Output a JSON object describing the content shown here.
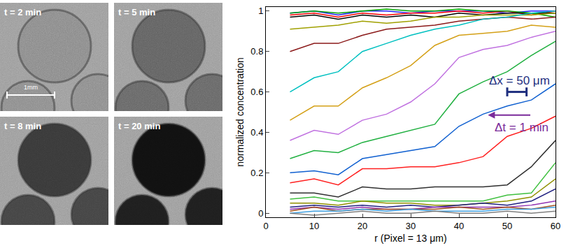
{
  "chart_data": {
    "type": "line",
    "xlabel": "r (Pixel = 13 μm)",
    "ylabel": "normalized concentration",
    "x": [
      5,
      10,
      15,
      20,
      25,
      30,
      35,
      40,
      45,
      50,
      55,
      60
    ],
    "xlim": [
      0,
      60
    ],
    "xticks": [
      0,
      10,
      20,
      30,
      40,
      50,
      60
    ],
    "ylim": [
      -0.02,
      1.02
    ],
    "yticks": [
      0,
      0.2,
      0.4,
      0.6,
      0.8,
      1
    ],
    "grid": false,
    "series": [
      {
        "color": "#1f1fff",
        "values": [
          0.99,
          1.0,
          0.98,
          1.0,
          1.0,
          0.99,
          1.0,
          1.0,
          1.0,
          0.99,
          1.0,
          1.0
        ]
      },
      {
        "color": "#ff0000",
        "values": [
          0.98,
          0.99,
          0.97,
          0.99,
          0.98,
          0.99,
          0.99,
          1.0,
          0.99,
          1.0,
          0.98,
          1.0
        ]
      },
      {
        "color": "#000000",
        "values": [
          0.97,
          0.98,
          0.96,
          0.98,
          0.97,
          0.98,
          0.97,
          0.99,
          0.98,
          0.99,
          0.99,
          0.99
        ]
      },
      {
        "color": "#00a000",
        "values": [
          0.99,
          1.0,
          0.99,
          1.0,
          1.01,
          1.0,
          1.0,
          1.01,
          1.0,
          1.0,
          0.99,
          0.97
        ]
      },
      {
        "color": "#a0a000",
        "values": [
          0.91,
          0.92,
          0.93,
          0.95,
          0.94,
          0.95,
          0.97,
          0.97,
          0.98,
          0.98,
          0.98,
          0.99
        ]
      },
      {
        "color": "#8b1a1a",
        "values": [
          0.8,
          0.84,
          0.84,
          0.88,
          0.91,
          0.92,
          0.93,
          0.95,
          0.96,
          0.97,
          0.96,
          0.97
        ]
      },
      {
        "color": "#00c0c0",
        "values": [
          0.6,
          0.67,
          0.7,
          0.8,
          0.84,
          0.88,
          0.91,
          0.93,
          0.96,
          0.97,
          0.99,
          1.0
        ]
      },
      {
        "color": "#d4a017",
        "values": [
          0.46,
          0.53,
          0.53,
          0.62,
          0.67,
          0.73,
          0.83,
          0.88,
          0.89,
          0.9,
          0.93,
          0.92
        ]
      },
      {
        "color": "#c071e0",
        "values": [
          0.36,
          0.41,
          0.39,
          0.46,
          0.49,
          0.55,
          0.64,
          0.77,
          0.81,
          0.83,
          0.87,
          0.9
        ]
      },
      {
        "color": "#20b040",
        "values": [
          0.27,
          0.31,
          0.3,
          0.35,
          0.38,
          0.41,
          0.44,
          0.59,
          0.65,
          0.7,
          0.78,
          0.85
        ]
      },
      {
        "color": "#1060d0",
        "values": [
          0.2,
          0.21,
          0.19,
          0.27,
          0.29,
          0.31,
          0.33,
          0.43,
          0.49,
          0.53,
          0.56,
          0.64
        ]
      },
      {
        "color": "#ff2020",
        "values": [
          0.15,
          0.17,
          0.14,
          0.22,
          0.22,
          0.23,
          0.23,
          0.25,
          0.28,
          0.38,
          0.42,
          0.48
        ]
      },
      {
        "color": "#303030",
        "values": [
          0.1,
          0.1,
          0.08,
          0.13,
          0.12,
          0.12,
          0.13,
          0.13,
          0.13,
          0.14,
          0.23,
          0.36
        ]
      },
      {
        "color": "#40c040",
        "values": [
          0.07,
          0.08,
          0.06,
          0.06,
          0.06,
          0.06,
          0.06,
          0.06,
          0.06,
          0.09,
          0.1,
          0.25
        ]
      },
      {
        "color": "#909000",
        "values": [
          0.05,
          0.05,
          0.04,
          0.06,
          0.05,
          0.05,
          0.04,
          0.04,
          0.05,
          0.06,
          0.08,
          0.17
        ]
      },
      {
        "color": "#202080",
        "values": [
          0.03,
          0.04,
          0.03,
          0.04,
          0.03,
          0.04,
          0.03,
          0.04,
          0.05,
          0.04,
          0.06,
          0.12
        ]
      },
      {
        "color": "#9030b0",
        "values": [
          0.02,
          0.03,
          0.02,
          0.03,
          0.02,
          0.02,
          0.03,
          0.03,
          0.03,
          0.03,
          0.04,
          0.06
        ]
      },
      {
        "color": "#a05020",
        "values": [
          0.01,
          0.03,
          0.01,
          0.02,
          0.02,
          0.02,
          0.02,
          0.03,
          0.02,
          0.03,
          0.02,
          0.04
        ]
      },
      {
        "color": "#40a0e0",
        "values": [
          0.0,
          0.01,
          0.01,
          0.02,
          0.01,
          0.02,
          0.01,
          0.01,
          0.01,
          0.02,
          0.02,
          0.03
        ]
      },
      {
        "color": "#808080",
        "values": [
          0.0,
          -0.01,
          0.0,
          0.01,
          0.0,
          0.0,
          0.01,
          0.0,
          0.0,
          0.01,
          0.0,
          0.01
        ]
      }
    ],
    "annotations": [
      {
        "text": "Δx = 50 μm",
        "x": 52.5,
        "y": 0.655,
        "color": "#1f2f7f",
        "scale_bar": {
          "x0": 50,
          "x1": 54,
          "y": 0.6
        }
      },
      {
        "text": "Δt = 1 min",
        "x": 53,
        "y": 0.425,
        "color": "#7a2a9a",
        "arrow": {
          "from": 55,
          "to": 46,
          "y": 0.485
        }
      }
    ]
  },
  "images": {
    "panels": [
      "t = 2 min",
      "t = 5 min",
      "t = 8 min",
      "t = 20 min"
    ],
    "scale_bar_label": "1mm"
  }
}
